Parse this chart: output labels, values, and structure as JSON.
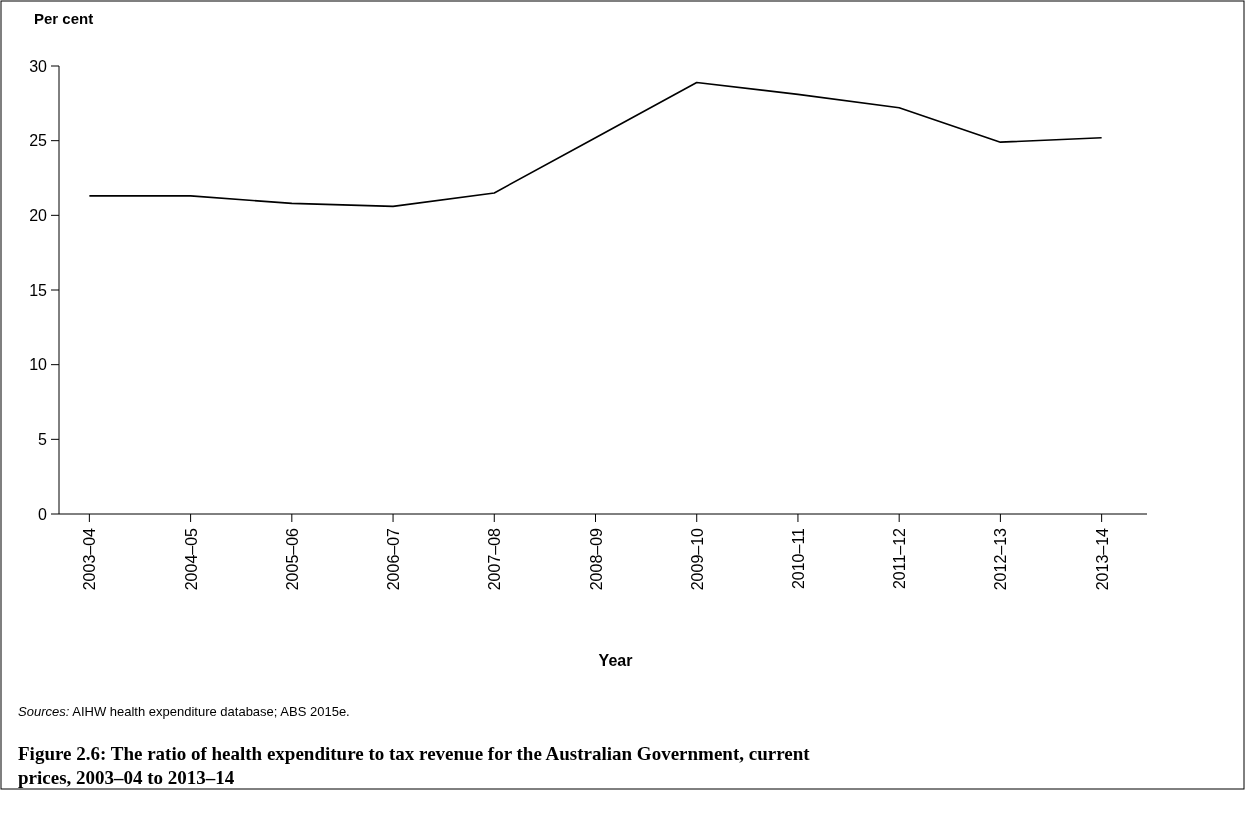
{
  "chart_data": {
    "type": "line",
    "title": "Figure 2.6: The ratio of health expenditure to tax revenue for the Australian Government, current prices, 2003–04 to 2013–14",
    "xlabel": "Year",
    "ylabel": "Per cent",
    "annotations": [
      "Sources: AIHW health expenditure database; ABS 2015e."
    ],
    "categories": [
      "2003–04",
      "2004–05",
      "2005–06",
      "2006–07",
      "2007–08",
      "2008–09",
      "2009–10",
      "2010–11",
      "2011–12",
      "2012–13",
      "2013–14"
    ],
    "series": [
      {
        "color": "#000000",
        "values": [
          21.3,
          21.3,
          20.8,
          20.6,
          21.5,
          25.2,
          28.9,
          28.1,
          27.2,
          24.9,
          25.2
        ]
      }
    ],
    "ylim": [
      0,
      30
    ],
    "yticks": [
      0,
      5,
      10,
      15,
      20,
      25,
      30
    ],
    "line_style": "solid"
  }
}
